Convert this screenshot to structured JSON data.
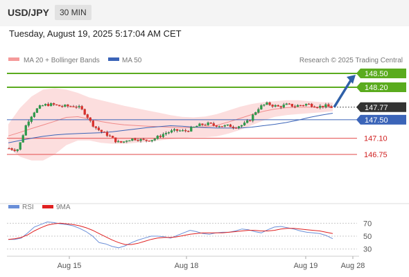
{
  "header": {
    "pair": "USD/JPY",
    "timeframe": "30 MIN"
  },
  "datetime": "Tuesday, August 19, 2025 5:17:04 AM CET",
  "legend": {
    "ma20": "MA 20 + Bollinger Bands",
    "ma50": "MA 50",
    "credit": "Research © 2025 Trading Central"
  },
  "rsi_legend": {
    "rsi": "RSI",
    "ma": "9MA"
  },
  "colors": {
    "resistance": "#5aab1e",
    "support": "#e86a6a",
    "ma50": "#3b64b8",
    "bollinger": "#fcdede",
    "arrow": "#2f60a8",
    "current": "#333333"
  },
  "chart_data": {
    "type": "candlestick",
    "symbol": "USD/JPY",
    "interval": "30 MIN",
    "ylim": [
      146.45,
      148.72
    ],
    "last_price": 147.77,
    "levels": [
      {
        "label": "148.50",
        "value": 148.5,
        "kind": "resistance"
      },
      {
        "label": "148.20",
        "value": 148.2,
        "kind": "resistance"
      },
      {
        "label": "147.77",
        "value": 147.77,
        "kind": "current"
      },
      {
        "label": "147.50",
        "value": 147.5,
        "kind": "pivot"
      },
      {
        "label": "147.10",
        "value": 147.1,
        "kind": "support"
      },
      {
        "label": "146.75",
        "value": 146.75,
        "kind": "support"
      }
    ],
    "x_ticks": [
      "Aug 15",
      "Aug 18",
      "Aug 19",
      "Aug 28"
    ],
    "price_path": [
      146.88,
      146.86,
      146.85,
      147.05,
      147.35,
      147.52,
      147.66,
      147.74,
      147.8,
      147.82,
      147.83,
      147.82,
      147.8,
      147.79,
      147.79,
      147.79,
      147.8,
      147.77,
      147.7,
      147.6,
      147.45,
      147.35,
      147.28,
      147.22,
      147.18,
      147.12,
      147.05,
      147.0,
      147.02,
      147.07,
      147.08,
      147.09,
      147.07,
      147.05,
      147.06,
      147.07,
      147.1,
      147.15,
      147.2,
      147.23,
      147.25,
      147.27,
      147.26,
      147.25,
      147.28,
      147.32,
      147.36,
      147.39,
      147.4,
      147.41,
      147.38,
      147.38,
      147.37,
      147.36,
      147.37,
      147.35,
      147.36,
      147.38,
      147.42,
      147.5,
      147.62,
      147.74,
      147.8,
      147.84,
      147.83,
      147.8,
      147.78,
      147.8,
      147.82,
      147.81,
      147.79,
      147.81,
      147.82,
      147.84,
      147.82,
      147.8,
      147.78,
      147.8,
      147.79,
      147.77
    ],
    "bollinger_upper": [
      147.4,
      147.75,
      148.0,
      148.15,
      148.18,
      148.15,
      148.08,
      147.98,
      147.92,
      147.86,
      147.8,
      147.75,
      147.7,
      147.65,
      147.6,
      147.56,
      147.55,
      147.57,
      147.62,
      147.7,
      147.78,
      147.84,
      147.88,
      147.9,
      147.92,
      147.92,
      147.9,
      147.88,
      147.87
    ],
    "bollinger_lower": [
      146.9,
      146.7,
      146.62,
      146.62,
      146.75,
      146.95,
      147.05,
      147.05,
      147.0,
      146.98,
      146.98,
      147.0,
      147.02,
      147.05,
      147.08,
      147.1,
      147.12,
      147.12,
      147.14,
      147.2,
      147.28,
      147.38,
      147.48,
      147.56,
      147.6,
      147.62,
      147.64,
      147.66,
      147.68
    ],
    "ma50": [
      147.0,
      147.05,
      147.1,
      147.14,
      147.17,
      147.19,
      147.2,
      147.21,
      147.22,
      147.24,
      147.27,
      147.3,
      147.33,
      147.35,
      147.37,
      147.36,
      147.34,
      147.33,
      147.32,
      147.32,
      147.32,
      147.34,
      147.37,
      147.4,
      147.44,
      147.49,
      147.55,
      147.6,
      147.64
    ],
    "forecast_target": 148.5,
    "rsi": {
      "levels": [
        70,
        50,
        30
      ],
      "ylim": [
        20,
        80
      ],
      "rsi_values": [
        45,
        45,
        47,
        55,
        64,
        68,
        72,
        71,
        69,
        68,
        66,
        62,
        57,
        50,
        40,
        38,
        34,
        32,
        35,
        40,
        44,
        47,
        50,
        50,
        49,
        47,
        51,
        55,
        59,
        57,
        54,
        53,
        55,
        56,
        56,
        58,
        61,
        60,
        57,
        55,
        60,
        64,
        65,
        63,
        61,
        58,
        56,
        55,
        54,
        51,
        46
      ],
      "ma_values": [
        45,
        46,
        48,
        52,
        58,
        63,
        67,
        69,
        70,
        69,
        68,
        66,
        63,
        59,
        54,
        49,
        44,
        40,
        37,
        37,
        39,
        42,
        45,
        47,
        48,
        48,
        49,
        51,
        53,
        54,
        55,
        55,
        55,
        55,
        56,
        57,
        58,
        59,
        59,
        58,
        58,
        59,
        61,
        62,
        62,
        61,
        60,
        59,
        58,
        56,
        54
      ]
    }
  }
}
